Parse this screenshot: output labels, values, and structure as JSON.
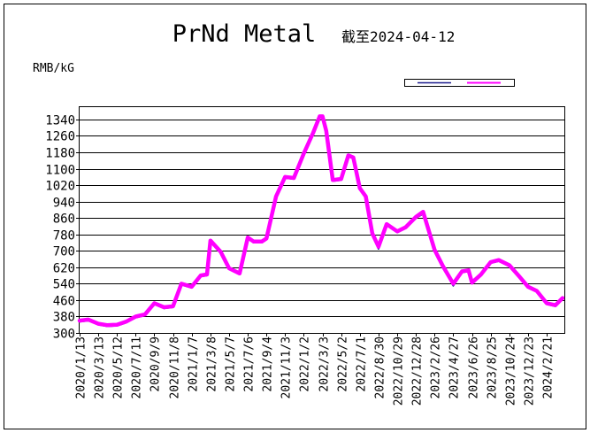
{
  "chart_data": {
    "type": "line",
    "title": "PrNd Metal",
    "subtitle": "截至2024-04-12",
    "ylabel": "RMB/kG",
    "xlabel": "",
    "ylim": [
      300,
      1400
    ],
    "yticks": [
      300,
      380,
      460,
      540,
      620,
      700,
      780,
      860,
      940,
      1020,
      1100,
      1180,
      1260,
      1340
    ],
    "xticks": [
      "2020/1/13",
      "2020/3/13",
      "2020/5/12",
      "2020/7/11",
      "2020/9/9",
      "2020/11/8",
      "2021/1/7",
      "2021/3/8",
      "2021/5/7",
      "2021/7/6",
      "2021/9/4",
      "2021/11/3",
      "2022/1/2",
      "2022/3/3",
      "2022/5/2",
      "2022/7/1",
      "2022/8/30",
      "2022/10/29",
      "2022/12/28",
      "2023/2/26",
      "2023/4/27",
      "2023/6/26",
      "2023/8/25",
      "2023/10/24",
      "2023/12/23",
      "2024/2/21"
    ],
    "grid": true,
    "legend": "top-right",
    "series": [
      {
        "color": "#1a1a8c",
        "x": [
          "2020/1/13",
          "2020/2/10",
          "2020/3/13",
          "2020/4/10",
          "2020/5/12",
          "2020/6/10",
          "2020/7/11",
          "2020/8/10",
          "2020/9/9",
          "2020/10/10",
          "2020/11/8",
          "2020/12/5",
          "2021/1/7",
          "2021/2/5",
          "2021/2/25",
          "2021/3/8",
          "2021/3/20",
          "2021/4/10",
          "2021/5/7",
          "2021/6/10",
          "2021/7/6",
          "2021/7/25",
          "2021/8/20",
          "2021/9/4",
          "2021/10/5",
          "2021/11/3",
          "2021/12/1",
          "2022/1/2",
          "2022/2/1",
          "2022/2/22",
          "2022/3/3",
          "2022/3/15",
          "2022/4/5",
          "2022/5/2",
          "2022/5/25",
          "2022/6/10",
          "2022/7/1",
          "2022/7/20",
          "2022/8/10",
          "2022/8/30",
          "2022/9/25",
          "2022/10/29",
          "2022/11/25",
          "2022/12/28",
          "2023/1/20",
          "2023/2/26",
          "2023/3/25",
          "2023/4/27",
          "2023/5/25",
          "2023/6/15",
          "2023/6/26",
          "2023/7/25",
          "2023/8/25",
          "2023/9/20",
          "2023/10/24",
          "2023/11/25",
          "2023/12/23",
          "2024/1/20",
          "2024/2/21",
          "2024/3/20",
          "2024/4/12"
        ],
        "values": [
          355,
          360,
          340,
          333,
          335,
          350,
          375,
          385,
          440,
          420,
          425,
          535,
          520,
          575,
          580,
          745,
          725,
          690,
          610,
          585,
          760,
          740,
          740,
          755,
          960,
          1055,
          1050,
          1170,
          1270,
          1350,
          1350,
          1280,
          1040,
          1045,
          1160,
          1150,
          1000,
          960,
          780,
          710,
          825,
          790,
          810,
          860,
          880,
          700,
          620,
          530,
          595,
          600,
          540,
          580,
          640,
          650,
          625,
          570,
          520,
          500,
          440,
          430,
          465
        ]
      },
      {
        "color": "#ff00ff",
        "x": [
          "2020/1/13",
          "2020/2/10",
          "2020/3/13",
          "2020/4/10",
          "2020/5/12",
          "2020/6/10",
          "2020/7/11",
          "2020/8/10",
          "2020/9/9",
          "2020/10/10",
          "2020/11/8",
          "2020/12/5",
          "2021/1/7",
          "2021/2/5",
          "2021/2/25",
          "2021/3/8",
          "2021/3/20",
          "2021/4/10",
          "2021/5/7",
          "2021/6/10",
          "2021/7/6",
          "2021/7/25",
          "2021/8/20",
          "2021/9/4",
          "2021/10/5",
          "2021/11/3",
          "2021/12/1",
          "2022/1/2",
          "2022/2/1",
          "2022/2/22",
          "2022/3/3",
          "2022/3/15",
          "2022/4/5",
          "2022/5/2",
          "2022/5/25",
          "2022/6/10",
          "2022/7/1",
          "2022/7/20",
          "2022/8/10",
          "2022/8/30",
          "2022/9/25",
          "2022/10/29",
          "2022/11/25",
          "2022/12/28",
          "2023/1/20",
          "2023/2/26",
          "2023/3/25",
          "2023/4/27",
          "2023/5/25",
          "2023/6/15",
          "2023/6/26",
          "2023/7/25",
          "2023/8/25",
          "2023/9/20",
          "2023/10/24",
          "2023/11/25",
          "2023/12/23",
          "2024/1/20",
          "2024/2/21",
          "2024/3/20",
          "2024/4/12"
        ],
        "values": [
          360,
          365,
          345,
          338,
          340,
          355,
          380,
          390,
          445,
          425,
          430,
          540,
          525,
          580,
          585,
          750,
          730,
          695,
          615,
          590,
          765,
          745,
          745,
          760,
          965,
          1060,
          1055,
          1175,
          1275,
          1355,
          1355,
          1285,
          1045,
          1050,
          1165,
          1155,
          1005,
          965,
          785,
          720,
          830,
          795,
          815,
          865,
          890,
          705,
          625,
          540,
          600,
          605,
          545,
          585,
          645,
          655,
          630,
          575,
          525,
          505,
          445,
          435,
          470
        ]
      }
    ]
  }
}
